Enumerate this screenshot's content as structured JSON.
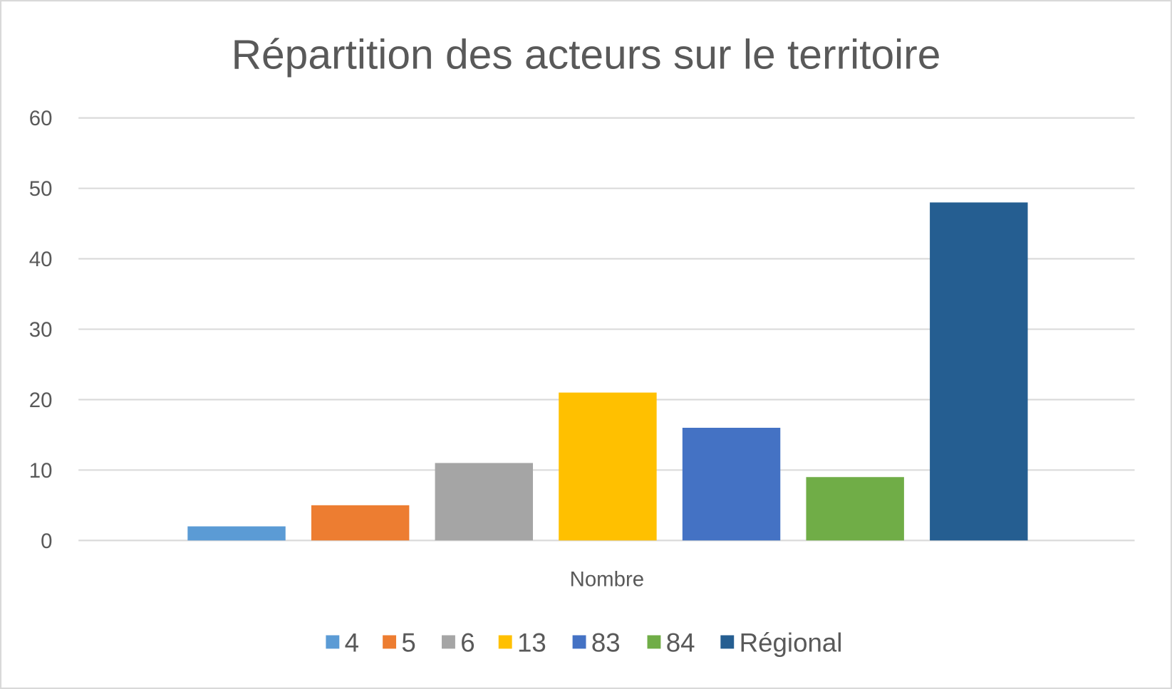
{
  "chart_data": {
    "type": "bar",
    "title": "Répartition des acteurs sur le territoire",
    "categories": [
      "Nombre"
    ],
    "xlabel": "",
    "ylabel": "",
    "ylim": [
      0,
      60
    ],
    "yticks": [
      "0",
      "10",
      "20",
      "30",
      "40",
      "50",
      "60"
    ],
    "grid": true,
    "legend_position": "bottom",
    "series": [
      {
        "name": "4",
        "values": [
          2
        ],
        "color": "#5B9BD5"
      },
      {
        "name": "5",
        "values": [
          5
        ],
        "color": "#ED7D31"
      },
      {
        "name": "6",
        "values": [
          11
        ],
        "color": "#A5A5A5"
      },
      {
        "name": "13",
        "values": [
          21
        ],
        "color": "#FFC000"
      },
      {
        "name": "83",
        "values": [
          16
        ],
        "color": "#4472C4"
      },
      {
        "name": "84",
        "values": [
          9
        ],
        "color": "#70AD47"
      },
      {
        "name": "Régional",
        "values": [
          48
        ],
        "color": "#255E91"
      }
    ]
  }
}
